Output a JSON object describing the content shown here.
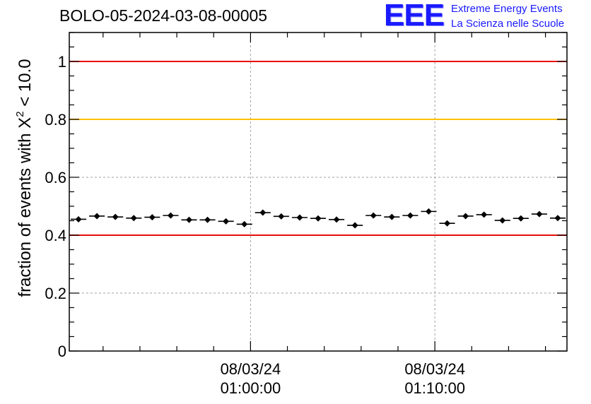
{
  "title": "BOLO-05-2024-03-08-00005",
  "logo": {
    "mark": "EEE",
    "line1": "Extreme Energy Events",
    "line2": "La Scienza nelle Scuole"
  },
  "colors": {
    "red_line": "#e8100a",
    "yellow_line": "#ffc000",
    "marker": "#000000",
    "grid": "#a0a0a0",
    "logo": "#1a1aff"
  },
  "chart_data": {
    "type": "scatter",
    "title": "BOLO-05-2024-03-08-00005",
    "ylabel_prefix": "fraction of events with X",
    "ylabel_sup": "2",
    "ylabel_suffix": " < 10.0",
    "xlabel": "",
    "ylim": [
      0,
      1.1
    ],
    "y_ticks": [
      0,
      0.2,
      0.4,
      0.6,
      0.8,
      1
    ],
    "y_tick_labels": [
      "0",
      "0.2",
      "0.4",
      "0.6",
      "0.8",
      "1"
    ],
    "x_time_range": [
      "2024-03-08 00:50:10",
      "2024-03-08 01:17:10"
    ],
    "x_ticks": [
      {
        "time": "2024-03-08 01:00:00",
        "date_label": "08/03/24",
        "time_label": "01:00:00"
      },
      {
        "time": "2024-03-08 01:10:00",
        "date_label": "08/03/24",
        "time_label": "01:10:00"
      }
    ],
    "reference_lines": [
      {
        "y": 1.0,
        "color": "#e8100a"
      },
      {
        "y": 0.8,
        "color": "#ffc000"
      },
      {
        "y": 0.4,
        "color": "#e8100a"
      }
    ],
    "grid": true,
    "series": [
      {
        "bin_width_seconds": 60,
        "points": [
          {
            "x": "2024-03-08 00:50:40",
            "y": 0.455,
            "err": 0.006
          },
          {
            "x": "2024-03-08 00:51:40",
            "y": 0.466,
            "err": 0.006
          },
          {
            "x": "2024-03-08 00:52:40",
            "y": 0.463,
            "err": 0.006
          },
          {
            "x": "2024-03-08 00:53:40",
            "y": 0.459,
            "err": 0.006
          },
          {
            "x": "2024-03-08 00:54:40",
            "y": 0.462,
            "err": 0.006
          },
          {
            "x": "2024-03-08 00:55:40",
            "y": 0.468,
            "err": 0.006
          },
          {
            "x": "2024-03-08 00:56:40",
            "y": 0.453,
            "err": 0.006
          },
          {
            "x": "2024-03-08 00:57:40",
            "y": 0.453,
            "err": 0.006
          },
          {
            "x": "2024-03-08 00:58:40",
            "y": 0.448,
            "err": 0.006
          },
          {
            "x": "2024-03-08 00:59:40",
            "y": 0.438,
            "err": 0.006
          },
          {
            "x": "2024-03-08 01:00:40",
            "y": 0.478,
            "err": 0.006
          },
          {
            "x": "2024-03-08 01:01:40",
            "y": 0.465,
            "err": 0.006
          },
          {
            "x": "2024-03-08 01:02:40",
            "y": 0.461,
            "err": 0.006
          },
          {
            "x": "2024-03-08 01:03:40",
            "y": 0.458,
            "err": 0.006
          },
          {
            "x": "2024-03-08 01:04:40",
            "y": 0.454,
            "err": 0.006
          },
          {
            "x": "2024-03-08 01:05:40",
            "y": 0.434,
            "err": 0.006
          },
          {
            "x": "2024-03-08 01:06:40",
            "y": 0.468,
            "err": 0.006
          },
          {
            "x": "2024-03-08 01:07:40",
            "y": 0.463,
            "err": 0.006
          },
          {
            "x": "2024-03-08 01:08:40",
            "y": 0.468,
            "err": 0.006
          },
          {
            "x": "2024-03-08 01:09:40",
            "y": 0.482,
            "err": 0.006
          },
          {
            "x": "2024-03-08 01:10:40",
            "y": 0.441,
            "err": 0.006
          },
          {
            "x": "2024-03-08 01:11:40",
            "y": 0.466,
            "err": 0.006
          },
          {
            "x": "2024-03-08 01:12:40",
            "y": 0.471,
            "err": 0.006
          },
          {
            "x": "2024-03-08 01:13:40",
            "y": 0.451,
            "err": 0.006
          },
          {
            "x": "2024-03-08 01:14:40",
            "y": 0.458,
            "err": 0.006
          },
          {
            "x": "2024-03-08 01:15:40",
            "y": 0.473,
            "err": 0.006
          },
          {
            "x": "2024-03-08 01:16:40",
            "y": 0.459,
            "err": 0.006
          }
        ]
      }
    ]
  }
}
